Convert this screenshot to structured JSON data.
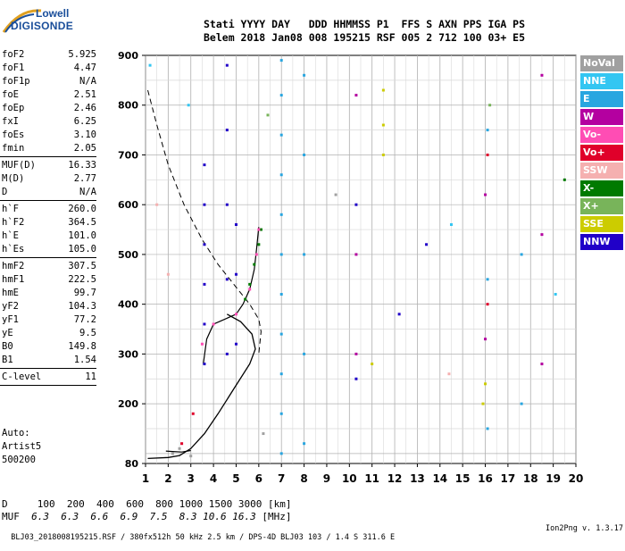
{
  "logo": {
    "line1": "Lowell",
    "line2": "DIGISONDE"
  },
  "header": {
    "row1": "Stati YYYY DAY   DDD HHMMSS P1  FFS S AXN PPS IGA PS",
    "row2": "Belem 2018 Jan08 008 195215 RSF 005 2 712 100 03+ E5"
  },
  "params": [
    {
      "name": "foF2",
      "value": "5.925"
    },
    {
      "name": "foF1",
      "value": "4.47"
    },
    {
      "name": "foF1p",
      "value": "N/A"
    },
    {
      "name": "foE",
      "value": "2.51"
    },
    {
      "name": "foEp",
      "value": "2.46"
    },
    {
      "name": "fxI",
      "value": "6.25"
    },
    {
      "name": "foEs",
      "value": "3.10"
    },
    {
      "name": "fmin",
      "value": "2.05"
    },
    {
      "sep": true
    },
    {
      "name": "MUF(D)",
      "value": "16.33"
    },
    {
      "name": "M(D)",
      "value": "2.77"
    },
    {
      "name": "D",
      "value": "N/A"
    },
    {
      "sep": true
    },
    {
      "name": "h`F",
      "value": "260.0"
    },
    {
      "name": "h`F2",
      "value": "364.5"
    },
    {
      "name": "h`E",
      "value": "101.0"
    },
    {
      "name": "h`Es",
      "value": "105.0"
    },
    {
      "sep": true
    },
    {
      "name": "hmF2",
      "value": "307.5"
    },
    {
      "name": "hmF1",
      "value": "222.5"
    },
    {
      "name": "hmE",
      "value": "99.7"
    },
    {
      "name": "yF2",
      "value": "104.3"
    },
    {
      "name": "yF1",
      "value": "77.2"
    },
    {
      "name": "yE",
      "value": "9.5"
    },
    {
      "name": "B0",
      "value": "149.8"
    },
    {
      "name": "B1",
      "value": "1.54"
    },
    {
      "sep": true
    },
    {
      "name": "C-level",
      "value": "11"
    },
    {
      "sep": true
    }
  ],
  "auto": {
    "line1": "Auto:",
    "line2": "Artist5",
    "line3": "500200"
  },
  "legend": [
    {
      "label": "NoVal",
      "color": "#a0a0a0"
    },
    {
      "label": "NNE",
      "color": "#33c6f2"
    },
    {
      "label": "E",
      "color": "#29a6e0"
    },
    {
      "label": "W",
      "color": "#b400a0"
    },
    {
      "label": "Vo-",
      "color": "#ff4db4"
    },
    {
      "label": "Vo+",
      "color": "#e0002a"
    },
    {
      "label": "SSW",
      "color": "#f5b0b0"
    },
    {
      "label": "X-",
      "color": "#007a00"
    },
    {
      "label": "X+",
      "color": "#78b45a"
    },
    {
      "label": "SSE",
      "color": "#cccc00"
    },
    {
      "label": "NNW",
      "color": "#2000c8"
    }
  ],
  "bottom": {
    "d_row": "D     100  200  400  600  800 1000 1500 3000 [km]",
    "muf_label": "MUF",
    "muf_values": "6.3  6.3  6.6  6.9  7.5  8.3 10.6 16.3",
    "muf_unit": "[MHz]"
  },
  "footer": {
    "left": "BLJ03_2018008195215.RSF / 380fx512h 50 kHz 2.5 km / DPS-4D BLJ03 103 / 1.4 S 311.6 E",
    "right": "Ion2Png v. 1.3.17"
  },
  "chart_data": {
    "type": "scatter",
    "title": "",
    "xlabel": "",
    "ylabel": "",
    "xlim": [
      1,
      20
    ],
    "ylim": [
      80,
      900
    ],
    "xticks": [
      1,
      2,
      3,
      4,
      5,
      6,
      7,
      8,
      9,
      10,
      11,
      12,
      13,
      14,
      15,
      16,
      17,
      18,
      19,
      20
    ],
    "yticks": [
      80,
      200,
      300,
      400,
      500,
      600,
      700,
      800,
      900
    ],
    "grid": true,
    "legend_position": "right",
    "series": [
      {
        "name": "E",
        "color": "#29a6e0",
        "points": [
          [
            7.0,
            100
          ],
          [
            7.0,
            180
          ],
          [
            7.0,
            260
          ],
          [
            7.0,
            340
          ],
          [
            7.0,
            420
          ],
          [
            7.0,
            500
          ],
          [
            7.0,
            580
          ],
          [
            7.0,
            660
          ],
          [
            7.0,
            740
          ],
          [
            7.0,
            820
          ],
          [
            7.0,
            890
          ],
          [
            8.0,
            120
          ],
          [
            8.0,
            300
          ],
          [
            8.0,
            500
          ],
          [
            8.0,
            700
          ],
          [
            8.0,
            860
          ],
          [
            16.1,
            150
          ],
          [
            16.1,
            450
          ],
          [
            16.1,
            750
          ],
          [
            17.6,
            200
          ],
          [
            17.6,
            500
          ]
        ]
      },
      {
        "name": "NNW",
        "color": "#2000c8",
        "points": [
          [
            3.6,
            280
          ],
          [
            3.6,
            360
          ],
          [
            3.6,
            440
          ],
          [
            3.6,
            520
          ],
          [
            3.6,
            600
          ],
          [
            3.6,
            680
          ],
          [
            4.6,
            300
          ],
          [
            4.6,
            450
          ],
          [
            4.6,
            600
          ],
          [
            4.6,
            750
          ],
          [
            4.6,
            880
          ],
          [
            5.0,
            320
          ],
          [
            5.0,
            460
          ],
          [
            5.0,
            560
          ],
          [
            10.3,
            250
          ],
          [
            10.3,
            600
          ],
          [
            12.2,
            380
          ],
          [
            13.4,
            520
          ]
        ]
      },
      {
        "name": "W",
        "color": "#b400a0",
        "points": [
          [
            10.3,
            300
          ],
          [
            10.3,
            500
          ],
          [
            10.3,
            820
          ],
          [
            16.0,
            330
          ],
          [
            16.0,
            620
          ],
          [
            18.5,
            280
          ],
          [
            18.5,
            540
          ],
          [
            18.5,
            860
          ]
        ]
      },
      {
        "name": "X-",
        "color": "#007a00",
        "points": [
          [
            5.4,
            410
          ],
          [
            5.6,
            440
          ],
          [
            5.8,
            480
          ],
          [
            6.0,
            520
          ],
          [
            6.1,
            550
          ],
          [
            19.5,
            650
          ]
        ]
      },
      {
        "name": "Vo-",
        "color": "#ff4db4",
        "points": [
          [
            3.5,
            320
          ],
          [
            4.0,
            360
          ],
          [
            5.0,
            380
          ],
          [
            5.6,
            430
          ],
          [
            5.9,
            500
          ],
          [
            6.0,
            550
          ]
        ]
      },
      {
        "name": "Vo+",
        "color": "#e0002a",
        "points": [
          [
            2.6,
            120
          ],
          [
            3.1,
            180
          ],
          [
            16.1,
            400
          ],
          [
            16.1,
            700
          ]
        ]
      },
      {
        "name": "SSE",
        "color": "#cccc00",
        "points": [
          [
            11.5,
            700
          ],
          [
            11.5,
            760
          ],
          [
            11.5,
            830
          ],
          [
            15.9,
            200
          ],
          [
            16.0,
            240
          ],
          [
            11.0,
            280
          ]
        ]
      },
      {
        "name": "SSW",
        "color": "#f5b0b0",
        "points": [
          [
            1.5,
            600
          ],
          [
            2.0,
            460
          ],
          [
            14.4,
            260
          ]
        ]
      },
      {
        "name": "X+",
        "color": "#78b45a",
        "points": [
          [
            6.4,
            780
          ],
          [
            16.2,
            800
          ]
        ]
      },
      {
        "name": "NNE",
        "color": "#33c6f2",
        "points": [
          [
            1.2,
            880
          ],
          [
            2.9,
            800
          ],
          [
            14.5,
            560
          ],
          [
            19.1,
            420
          ]
        ]
      },
      {
        "name": "NoVal",
        "color": "#a0a0a0",
        "points": [
          [
            2.2,
            100
          ],
          [
            2.5,
            110
          ],
          [
            3.0,
            95
          ],
          [
            6.2,
            140
          ],
          [
            9.4,
            620
          ]
        ]
      }
    ],
    "profile_solid": [
      [
        1.1,
        90
      ],
      [
        2.0,
        92
      ],
      [
        2.5,
        96
      ],
      [
        3.0,
        110
      ],
      [
        3.6,
        140
      ],
      [
        4.2,
        180
      ],
      [
        4.9,
        230
      ],
      [
        5.6,
        280
      ],
      [
        5.85,
        310
      ],
      [
        5.7,
        340
      ],
      [
        5.2,
        365
      ],
      [
        4.6,
        380
      ],
      [
        4.6,
        380
      ]
    ],
    "profile_dashed": [
      [
        1.1,
        830
      ],
      [
        1.5,
        760
      ],
      [
        2.0,
        680
      ],
      [
        2.7,
        600
      ],
      [
        3.5,
        530
      ],
      [
        4.2,
        480
      ],
      [
        4.9,
        440
      ],
      [
        5.6,
        400
      ],
      [
        6.0,
        370
      ],
      [
        6.1,
        345
      ],
      [
        6.0,
        300
      ]
    ],
    "trace_of": [
      [
        3.55,
        280
      ],
      [
        3.7,
        330
      ],
      [
        4.0,
        360
      ],
      [
        4.5,
        370
      ],
      [
        5.0,
        380
      ],
      [
        5.3,
        400
      ],
      [
        5.6,
        430
      ],
      [
        5.8,
        470
      ],
      [
        5.9,
        510
      ],
      [
        6.0,
        555
      ]
    ],
    "trace_e": [
      [
        1.9,
        105
      ],
      [
        2.2,
        104
      ],
      [
        2.6,
        103
      ],
      [
        3.0,
        106
      ]
    ]
  }
}
